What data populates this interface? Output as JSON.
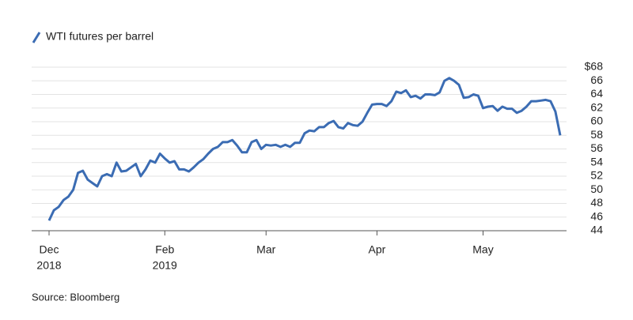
{
  "chart_data": {
    "type": "line",
    "series": [
      {
        "name": "WTI futures per barrel",
        "color": "#3b6cb3",
        "values": [
          45.5,
          47,
          47.5,
          48.5,
          49,
          50,
          52.5,
          52.8,
          51.5,
          51,
          50.5,
          52,
          52.3,
          52,
          54,
          52.7,
          52.8,
          53.3,
          53.8,
          52,
          53,
          54.3,
          54,
          55.3,
          54.6,
          54,
          54.2,
          53,
          53,
          52.7,
          53.3,
          54,
          54.5,
          55.3,
          56,
          56.3,
          57,
          57,
          57.3,
          56.5,
          55.5,
          55.5,
          57,
          57.3,
          56,
          56.6,
          56.5,
          56.6,
          56.3,
          56.6,
          56.3,
          56.9,
          56.9,
          58.3,
          58.7,
          58.6,
          59.2,
          59.2,
          59.8,
          60.1,
          59.2,
          59,
          59.8,
          59.5,
          59.4,
          60,
          61.3,
          62.5,
          62.6,
          62.6,
          62.3,
          63,
          64.4,
          64.2,
          64.6,
          63.6,
          63.8,
          63.4,
          64,
          64,
          63.9,
          64.3,
          66,
          66.4,
          66,
          65.4,
          63.5,
          63.6,
          64,
          63.8,
          62,
          62.2,
          62.3,
          61.6,
          62.2,
          61.9,
          61.9,
          61.3,
          61.6,
          62.2,
          63,
          63,
          63.1,
          63.2,
          63,
          61.5,
          58
        ]
      }
    ],
    "xlim": [
      0,
      106
    ],
    "xticks": [
      {
        "value": 0,
        "label": "Dec",
        "year": "2018"
      },
      {
        "value": 24,
        "label": "Feb",
        "year": "2019"
      },
      {
        "value": 45,
        "label": "Mar"
      },
      {
        "value": 68,
        "label": "Apr"
      },
      {
        "value": 90,
        "label": "May"
      }
    ],
    "ylim": [
      44,
      68
    ],
    "yticks": [
      44,
      46,
      48,
      50,
      52,
      54,
      56,
      58,
      60,
      62,
      64,
      66,
      {
        "value": 68,
        "label": "$68"
      }
    ],
    "grid": true,
    "source": "Source: Bloomberg"
  }
}
